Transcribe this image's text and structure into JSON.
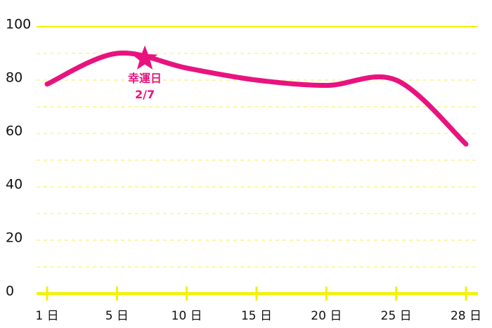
{
  "chart_data": {
    "type": "line",
    "x": [
      1,
      5,
      10,
      15,
      20,
      25,
      28
    ],
    "series": [
      {
        "color": "#e8137f",
        "values": [
          78.5,
          90,
          84.5,
          80,
          78,
          80,
          56
        ]
      }
    ],
    "xlim": [
      1,
      28
    ],
    "xticks": [
      {
        "value": 1,
        "label": "1 日"
      },
      {
        "value": 5,
        "label": "5 日"
      },
      {
        "value": 10,
        "label": "10 日"
      },
      {
        "value": 15,
        "label": "15 日"
      },
      {
        "value": 20,
        "label": "20 日"
      },
      {
        "value": 25,
        "label": "25 日"
      },
      {
        "value": 28,
        "label": "28 日"
      }
    ],
    "ylim": [
      0,
      100
    ],
    "yticks": [
      0,
      20,
      40,
      60,
      80,
      100
    ],
    "minor_yticks": [
      10,
      30,
      50,
      70,
      90
    ],
    "grid": true,
    "axis_color": "#f2f200",
    "annotation": {
      "x": 7,
      "y": 88,
      "label": "幸運日",
      "sublabel": "2/7"
    }
  }
}
